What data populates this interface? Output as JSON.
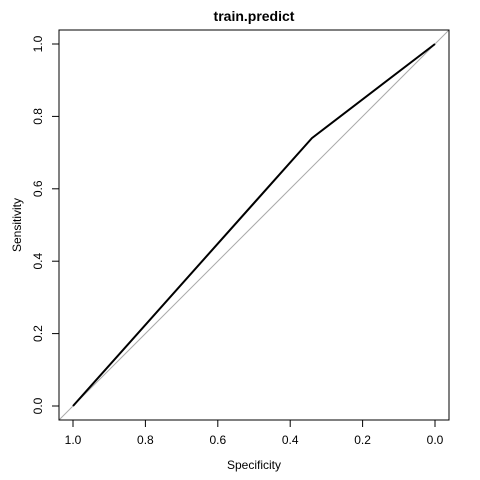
{
  "chart_data": {
    "type": "line",
    "title": "train.predict",
    "xlabel": "Specificity",
    "ylabel": "Sensitivity",
    "xlim": [
      1.0,
      0.0
    ],
    "ylim": [
      0.0,
      1.0
    ],
    "x_reversed": true,
    "grid": false,
    "legend": "none",
    "x_ticks": [
      1.0,
      0.8,
      0.6,
      0.4,
      0.2,
      0.0
    ],
    "x_tick_labels": [
      "1.0",
      "0.8",
      "0.6",
      "0.4",
      "0.2",
      "0.0"
    ],
    "y_ticks": [
      0.0,
      0.2,
      0.4,
      0.6,
      0.8,
      1.0
    ],
    "y_tick_labels": [
      "0.0",
      "0.2",
      "0.4",
      "0.6",
      "0.8",
      "1.0"
    ],
    "series": [
      {
        "points": [
          {
            "x": 1.0,
            "y": 0.0
          },
          {
            "x": 0.34,
            "y": 0.74
          },
          {
            "x": 0.0,
            "y": 1.0
          }
        ],
        "color": "#000000"
      }
    ],
    "reference_line": {
      "from": {
        "x": 1.0,
        "y": 0.0
      },
      "to": {
        "x": 0.0,
        "y": 1.0
      },
      "color": "#aaaaaa"
    }
  }
}
